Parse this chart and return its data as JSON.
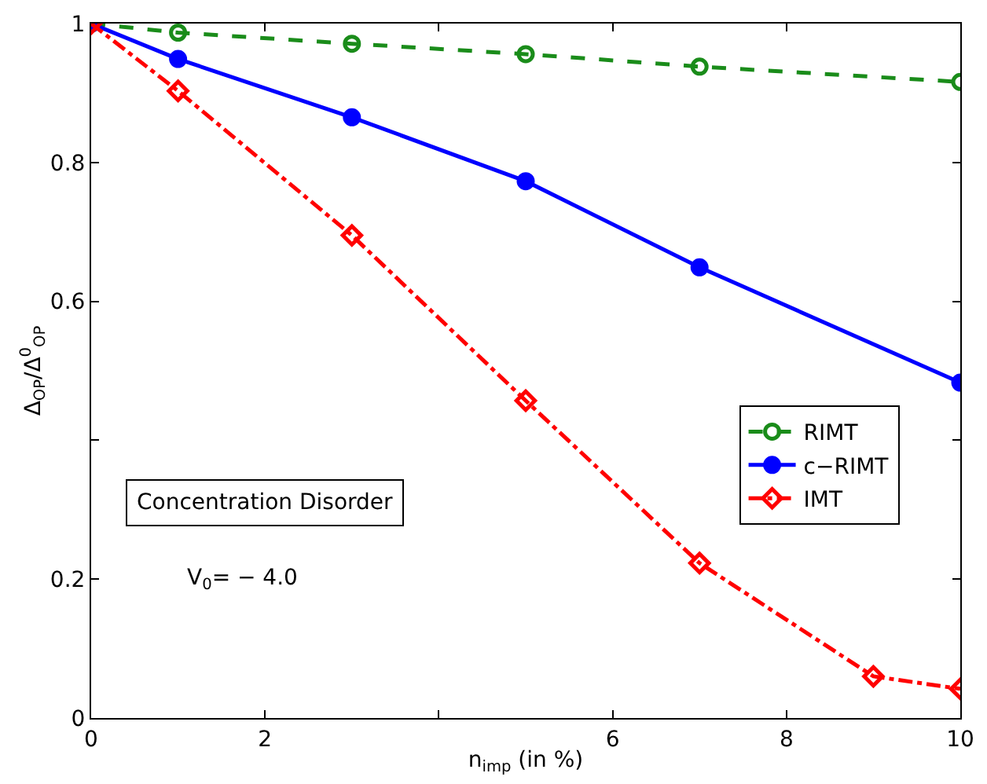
{
  "chart_data": {
    "type": "line",
    "xlabel": "n$_{imp}$ (in %)",
    "ylabel": "Δ$_{OP}$/Δ$^{0}$$_{OP}$",
    "xlim": [
      0,
      10
    ],
    "ylim": [
      0,
      1
    ],
    "xticks": [
      0,
      2,
      {
        "value": 4,
        "label": null
      },
      6,
      8,
      10
    ],
    "yticks": [
      0,
      0.2,
      {
        "value": 0.4,
        "label": null
      },
      0.6,
      0.8,
      1
    ],
    "legend": "right",
    "series": [
      {
        "name": "RIMT",
        "color": "#1a8c1a",
        "x": [
          0,
          1,
          3,
          5,
          7,
          10
        ],
        "values": [
          1,
          0.987,
          0.971,
          0.956,
          0.938,
          0.916
        ],
        "marker": "circle-open",
        "line_style": "dashed"
      },
      {
        "name": "c−RIMT",
        "color": "#0000ff",
        "x": [
          0,
          1,
          3,
          5,
          7,
          10
        ],
        "values": [
          1,
          0.949,
          0.865,
          0.773,
          0.649,
          0.483
        ],
        "marker": "circle",
        "line_style": "solid"
      },
      {
        "name": "IMT",
        "color": "#ff0000",
        "x": [
          0,
          1,
          3,
          5,
          7,
          9,
          10
        ],
        "values": [
          1,
          0.903,
          0.695,
          0.457,
          0.223,
          0.06,
          0.042
        ],
        "marker": "diamond-open",
        "line_style": "dashdot"
      }
    ],
    "annotations": [
      "Concentration Disorder",
      "V$_{0}$= − 4.0"
    ]
  }
}
